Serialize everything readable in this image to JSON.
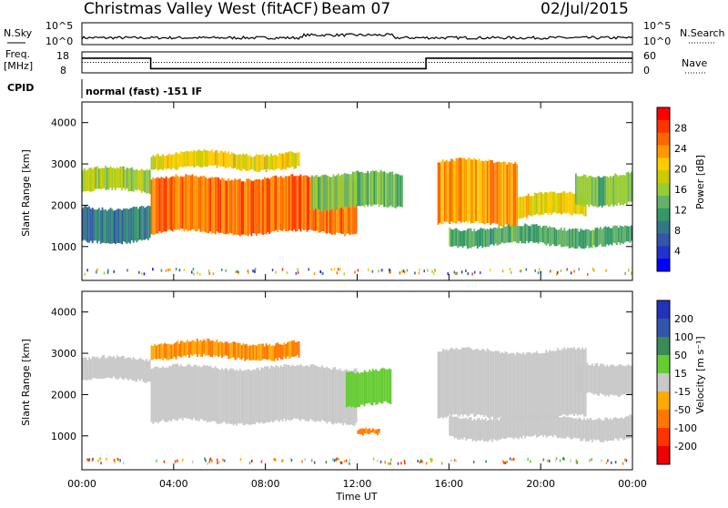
{
  "header": {
    "station": "Christmas Valley West (fitACF)",
    "beam": "Beam 07",
    "date": "02/Jul/2015"
  },
  "noise_panel": {
    "left_label": "N.Sky",
    "right_label": "N.Search",
    "left_ticks": [
      "10^5",
      "10^0"
    ],
    "right_ticks": [
      "10^5",
      "10^0"
    ]
  },
  "freq_panel": {
    "left_label_line1": "Freq.",
    "left_label_line2": "[MHz]",
    "right_label": "Nave",
    "left_ticks": [
      "18",
      "8"
    ],
    "right_ticks": [
      "60",
      "0"
    ]
  },
  "cpid": {
    "label": "CPID",
    "text": "normal (fast) -151 IF"
  },
  "power_panel": {
    "ylabel": "Slant Range [km]",
    "colorbar_label": "Power [dB]",
    "colorbar_ticks": [
      "28",
      "24",
      "20",
      "16",
      "12",
      "8",
      "4"
    ]
  },
  "velocity_panel": {
    "ylabel": "Slant Range [km]",
    "colorbar_label": "Velocity [m s⁻¹]",
    "colorbar_ticks": [
      "200",
      "100",
      "50",
      "15",
      "-15",
      "-50",
      "-100",
      "-200"
    ]
  },
  "xaxis": {
    "label": "Time UT",
    "ticks": [
      "00:00",
      "04:00",
      "08:00",
      "12:00",
      "16:00",
      "20:00",
      "00:00"
    ]
  },
  "colors": {
    "power": [
      "#ff0000",
      "#ff3300",
      "#ff6600",
      "#ff9900",
      "#ffcc00",
      "#cccc00",
      "#99cc33",
      "#66b266",
      "#339966",
      "#337788",
      "#3355aa",
      "#2233cc",
      "#0000ff"
    ],
    "velocity": [
      "#2233bb",
      "#3355aa",
      "#3a8a5a",
      "#66cc33",
      "#c8c8c8",
      "#ffaa00",
      "#ff7700",
      "#ff3300",
      "#ee0000"
    ]
  },
  "chart_data": [
    {
      "type": "heatmap",
      "title": "Power",
      "xlabel": "Time UT",
      "ylabel": "Slant Range [km]",
      "x_range": [
        "00:00",
        "24:00"
      ],
      "ylim": [
        180,
        4500
      ],
      "y_ticks": [
        1000,
        2000,
        3000,
        4000
      ],
      "colorbar_label": "Power [dB]",
      "colorbar_range": [
        0,
        32
      ],
      "bands": [
        {
          "t": [
            0,
            3
          ],
          "range_km": [
            2300,
            2900
          ],
          "power_db": 16
        },
        {
          "t": [
            3,
            9.5
          ],
          "range_km": [
            2850,
            3300
          ],
          "power_db": 20
        },
        {
          "t": [
            3,
            12
          ],
          "range_km": [
            1300,
            2700
          ],
          "power_db": 26
        },
        {
          "t": [
            0,
            3
          ],
          "range_km": [
            1100,
            2000
          ],
          "power_db": 8
        },
        {
          "t": [
            10,
            14
          ],
          "range_km": [
            1900,
            2800
          ],
          "power_db": 14
        },
        {
          "t": [
            15.5,
            19
          ],
          "range_km": [
            1500,
            3100
          ],
          "power_db": 24
        },
        {
          "t": [
            19,
            22
          ],
          "range_km": [
            1700,
            2300
          ],
          "power_db": 20
        },
        {
          "t": [
            21.5,
            24
          ],
          "range_km": [
            2000,
            2800
          ],
          "power_db": 14
        },
        {
          "t": [
            16,
            24
          ],
          "range_km": [
            1000,
            1500
          ],
          "power_db": 12
        }
      ]
    },
    {
      "type": "heatmap",
      "title": "Velocity",
      "xlabel": "Time UT",
      "ylabel": "Slant Range [km]",
      "x_range": [
        "00:00",
        "24:00"
      ],
      "ylim": [
        180,
        4500
      ],
      "y_ticks": [
        1000,
        2000,
        3000,
        4000
      ],
      "colorbar_label": "Velocity [m s⁻¹]",
      "colorbar_range": [
        -250,
        250
      ],
      "bands": [
        {
          "t": [
            0,
            3
          ],
          "range_km": [
            2300,
            2900
          ],
          "velocity": 0
        },
        {
          "t": [
            3,
            9.5
          ],
          "range_km": [
            2850,
            3300
          ],
          "velocity": -50
        },
        {
          "t": [
            3,
            12
          ],
          "range_km": [
            1300,
            2700
          ],
          "velocity": 0
        },
        {
          "t": [
            11.5,
            13.5
          ],
          "range_km": [
            1700,
            2600
          ],
          "velocity": 30
        },
        {
          "t": [
            12,
            13
          ],
          "range_km": [
            950,
            1150
          ],
          "velocity": -60
        },
        {
          "t": [
            15.5,
            22
          ],
          "range_km": [
            1400,
            3100
          ],
          "velocity": 0
        },
        {
          "t": [
            21.5,
            24
          ],
          "range_km": [
            2000,
            2800
          ],
          "velocity": 0
        },
        {
          "t": [
            16,
            24
          ],
          "range_km": [
            900,
            1500
          ],
          "velocity": 0
        }
      ]
    },
    {
      "type": "line",
      "title": "Frequency",
      "xlabel": "Time UT",
      "ylabel": "Freq. [MHz]",
      "ylim": [
        8,
        18
      ],
      "x": [
        0,
        3,
        3,
        15,
        15,
        24
      ],
      "values": [
        15,
        15,
        10,
        10,
        15,
        15
      ]
    },
    {
      "type": "line",
      "title": "Nave",
      "xlabel": "Time UT",
      "ylabel": "Nave",
      "ylim": [
        0,
        60
      ],
      "x": [
        0,
        24
      ],
      "values": [
        30,
        30
      ]
    }
  ]
}
